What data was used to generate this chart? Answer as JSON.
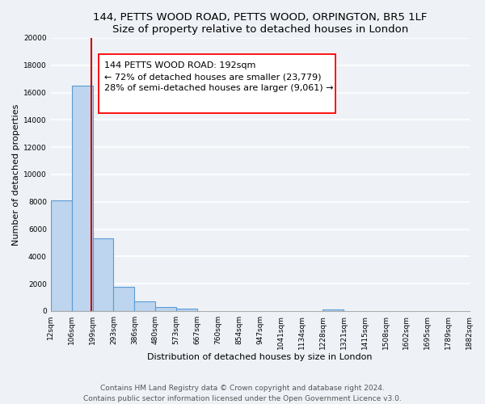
{
  "title": "144, PETTS WOOD ROAD, PETTS WOOD, ORPINGTON, BR5 1LF",
  "subtitle": "Size of property relative to detached houses in London",
  "xlabel": "Distribution of detached houses by size in London",
  "ylabel": "Number of detached properties",
  "num_bins": 20,
  "bar_heights": [
    8100,
    16500,
    5300,
    1800,
    700,
    280,
    180,
    0,
    0,
    0,
    0,
    0,
    0,
    100,
    0,
    0,
    0,
    0,
    0,
    0
  ],
  "bar_color": "#bdd5ee",
  "bar_edge_color": "#5b9bd5",
  "bar_linewidth": 0.8,
  "vline_bin": 1,
  "vline_color": "#cc0000",
  "vline_linewidth": 1.5,
  "annotation_line1": "144 PETTS WOOD ROAD: 192sqm",
  "annotation_line2": "← 72% of detached houses are smaller (23,779)",
  "annotation_line3": "28% of semi-detached houses are larger (9,061) →",
  "ylim": [
    0,
    20000
  ],
  "yticks": [
    0,
    2000,
    4000,
    6000,
    8000,
    10000,
    12000,
    14000,
    16000,
    18000,
    20000
  ],
  "tick_labels": [
    "12sqm",
    "106sqm",
    "199sqm",
    "293sqm",
    "386sqm",
    "480sqm",
    "573sqm",
    "667sqm",
    "760sqm",
    "854sqm",
    "947sqm",
    "1041sqm",
    "1134sqm",
    "1228sqm",
    "1321sqm",
    "1415sqm",
    "1508sqm",
    "1602sqm",
    "1695sqm",
    "1789sqm",
    "1882sqm"
  ],
  "footer_line1": "Contains HM Land Registry data © Crown copyright and database right 2024.",
  "footer_line2": "Contains public sector information licensed under the Open Government Licence v3.0.",
  "bg_color": "#eef2f7",
  "grid_color": "#ffffff",
  "title_fontsize": 9.5,
  "axis_label_fontsize": 8,
  "tick_fontsize": 6.5,
  "footer_fontsize": 6.5,
  "ann_fontsize": 8.0
}
